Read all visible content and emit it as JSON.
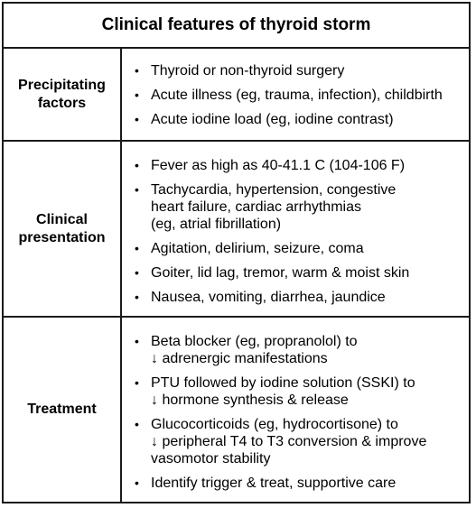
{
  "title": "Clinical features of thyroid storm",
  "rows": [
    {
      "header_lines": [
        "Precipitating",
        "factors"
      ],
      "items": [
        [
          "Thyroid or non-thyroid surgery"
        ],
        [
          "Acute illness (eg, trauma, infection), childbirth"
        ],
        [
          "Acute iodine load (eg, iodine contrast)"
        ]
      ]
    },
    {
      "header_lines": [
        "Clinical",
        "presentation"
      ],
      "items": [
        [
          "Fever as high as 40-41.1 C (104-106 F)"
        ],
        [
          "Tachycardia, hypertension, congestive",
          "heart failure, cardiac arrhythmias",
          "(eg, atrial fibrillation)"
        ],
        [
          "Agitation, delirium, seizure, coma"
        ],
        [
          "Goiter, lid lag, tremor, warm & moist skin"
        ],
        [
          "Nausea, vomiting, diarrhea, jaundice"
        ]
      ]
    },
    {
      "header_lines": [
        "Treatment"
      ],
      "items": [
        [
          "Beta blocker (eg, propranolol) to",
          "↓ adrenergic manifestations"
        ],
        [
          "PTU followed by iodine solution (SSKI) to",
          "↓ hormone synthesis & release"
        ],
        [
          "Glucocorticoids (eg, hydrocortisone) to",
          "↓ peripheral T4 to T3 conversion & improve",
          "vasomotor stability"
        ],
        [
          "Identify trigger & treat, supportive care"
        ]
      ]
    }
  ],
  "bullet_char": "•"
}
